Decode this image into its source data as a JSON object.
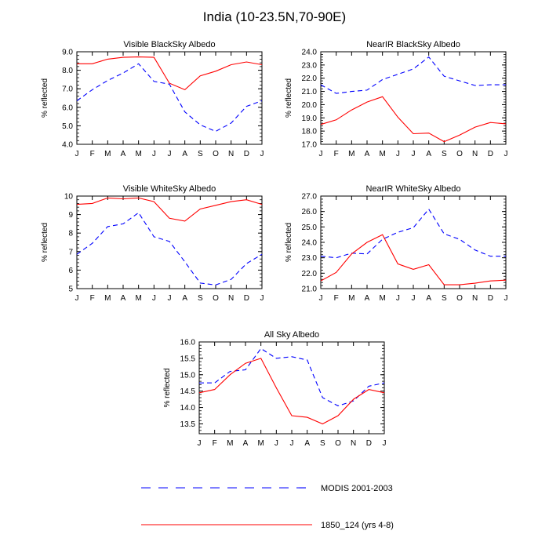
{
  "title": "India (10-23.5N,70-90E)",
  "legend": [
    {
      "label": "MODIS 2001-2003",
      "style": "dashed",
      "color": "#0000ff"
    },
    {
      "label": "1850_124 (yrs 4-8)",
      "style": "solid",
      "color": "#ff0000"
    }
  ],
  "chart_data": [
    {
      "type": "line",
      "title": "Visible BlackSky Albedo",
      "ylabel": "% reflected",
      "xlabel": "",
      "categories": [
        "J",
        "F",
        "M",
        "A",
        "M",
        "J",
        "J",
        "A",
        "S",
        "O",
        "N",
        "D",
        "J"
      ],
      "ylim": [
        4.0,
        9.0
      ],
      "yticks": [
        "4.0",
        "5.0",
        "6.0",
        "7.0",
        "8.0",
        "9.0"
      ],
      "series": [
        {
          "name": "MODIS 2001-2003",
          "values": [
            6.35,
            6.95,
            7.45,
            7.85,
            8.35,
            7.4,
            7.25,
            5.75,
            5.05,
            4.7,
            5.15,
            6.05,
            6.35
          ]
        },
        {
          "name": "1850_124 (yrs 4-8)",
          "values": [
            8.35,
            8.35,
            8.6,
            8.7,
            8.72,
            8.7,
            7.3,
            6.95,
            7.7,
            7.95,
            8.3,
            8.45,
            8.3
          ]
        }
      ]
    },
    {
      "type": "line",
      "title": "NearIR BlackSky Albedo",
      "ylabel": "% reflected",
      "xlabel": "",
      "categories": [
        "J",
        "F",
        "M",
        "A",
        "M",
        "J",
        "J",
        "A",
        "S",
        "O",
        "N",
        "D",
        "J"
      ],
      "ylim": [
        17.0,
        24.0
      ],
      "yticks": [
        "17.0",
        "18.0",
        "19.0",
        "20.0",
        "21.0",
        "22.0",
        "23.0",
        "24.0"
      ],
      "series": [
        {
          "name": "MODIS 2001-2003",
          "values": [
            21.5,
            20.85,
            21.0,
            21.1,
            21.9,
            22.3,
            22.7,
            23.6,
            22.15,
            21.8,
            21.45,
            21.5,
            21.5
          ]
        },
        {
          "name": "1850_124 (yrs 4-8)",
          "values": [
            18.5,
            18.85,
            19.6,
            20.2,
            20.6,
            19.05,
            17.8,
            17.85,
            17.2,
            17.7,
            18.3,
            18.65,
            18.55
          ]
        }
      ]
    },
    {
      "type": "line",
      "title": "Visible WhiteSky Albedo",
      "ylabel": "% reflected",
      "xlabel": "",
      "categories": [
        "J",
        "F",
        "M",
        "A",
        "M",
        "J",
        "J",
        "A",
        "S",
        "O",
        "N",
        "D",
        "J"
      ],
      "ylim": [
        5,
        10
      ],
      "yticks": [
        "5",
        "6",
        "7",
        "8",
        "9",
        "10"
      ],
      "series": [
        {
          "name": "MODIS 2001-2003",
          "values": [
            6.85,
            7.45,
            8.35,
            8.5,
            9.1,
            7.8,
            7.55,
            6.45,
            5.3,
            5.2,
            5.5,
            6.35,
            6.85
          ]
        },
        {
          "name": "1850_124 (yrs 4-8)",
          "values": [
            9.55,
            9.6,
            9.9,
            9.85,
            9.9,
            9.7,
            8.8,
            8.65,
            9.3,
            9.5,
            9.7,
            9.8,
            9.55
          ]
        }
      ]
    },
    {
      "type": "line",
      "title": "NearIR WhiteSky Albedo",
      "ylabel": "% reflected",
      "xlabel": "",
      "categories": [
        "J",
        "F",
        "M",
        "A",
        "M",
        "J",
        "J",
        "A",
        "S",
        "O",
        "N",
        "D",
        "J"
      ],
      "ylim": [
        21.0,
        27.0
      ],
      "yticks": [
        "21.0",
        "22.0",
        "23.0",
        "24.0",
        "25.0",
        "26.0",
        "27.0"
      ],
      "series": [
        {
          "name": "MODIS 2001-2003",
          "values": [
            23.1,
            23.0,
            23.3,
            23.25,
            24.2,
            24.65,
            24.95,
            26.15,
            24.55,
            24.2,
            23.5,
            23.1,
            23.1
          ]
        },
        {
          "name": "1850_124 (yrs 4-8)",
          "values": [
            21.5,
            22.05,
            23.25,
            24.0,
            24.5,
            22.6,
            22.25,
            22.55,
            21.25,
            21.25,
            21.35,
            21.5,
            21.55
          ]
        }
      ]
    },
    {
      "type": "line",
      "title": "All Sky Albedo",
      "ylabel": "% reflected",
      "xlabel": "",
      "categories": [
        "J",
        "F",
        "M",
        "A",
        "M",
        "J",
        "J",
        "A",
        "S",
        "O",
        "N",
        "D",
        "J"
      ],
      "ylim": [
        13.2,
        16.0
      ],
      "yticks": [
        "13.5",
        "14.0",
        "14.5",
        "15.0",
        "15.5",
        "16.0"
      ],
      "series": [
        {
          "name": "MODIS 2001-2003",
          "values": [
            14.75,
            14.75,
            15.1,
            15.15,
            15.8,
            15.5,
            15.55,
            15.45,
            14.3,
            14.05,
            14.2,
            14.65,
            14.75
          ]
        },
        {
          "name": "1850_124 (yrs 4-8)",
          "values": [
            14.45,
            14.55,
            15.0,
            15.35,
            15.5,
            14.6,
            13.75,
            13.7,
            13.5,
            13.75,
            14.25,
            14.55,
            14.45
          ]
        }
      ]
    }
  ]
}
